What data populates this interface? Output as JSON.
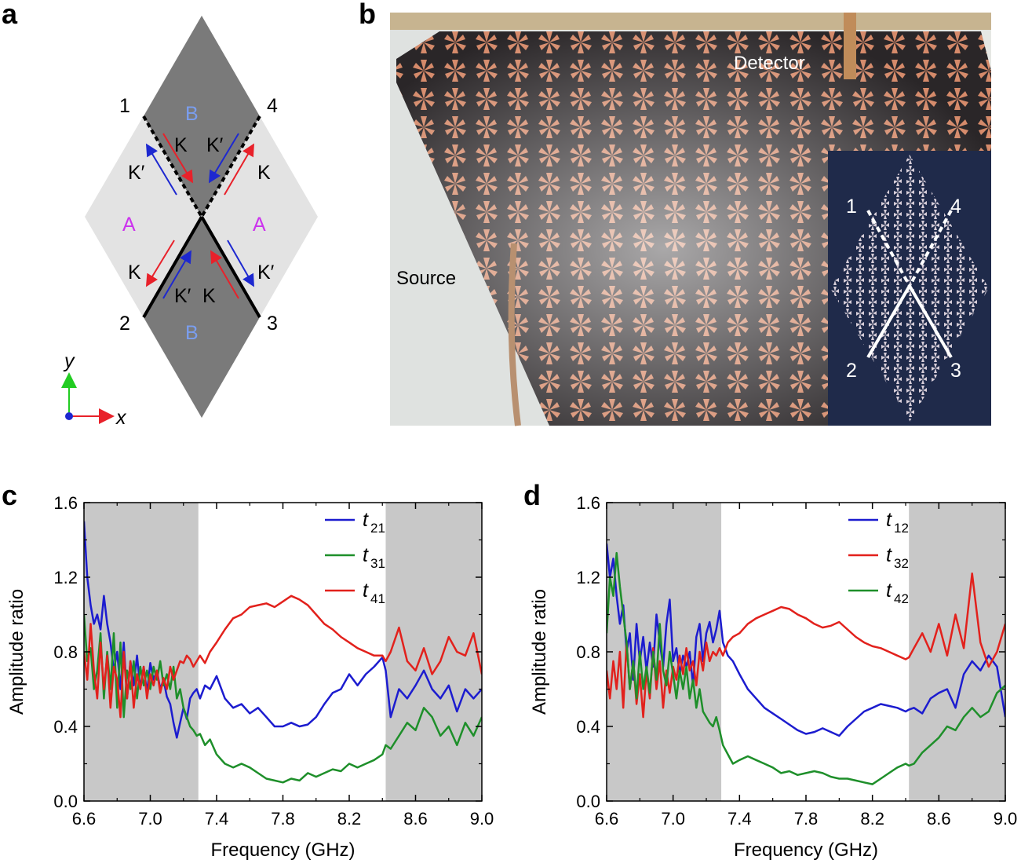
{
  "panels": {
    "a": {
      "letter": "a",
      "ports": [
        "1",
        "4",
        "2",
        "3"
      ],
      "region_B": "B",
      "region_A": "A",
      "valley_K": "K",
      "valley_Kp": "K′",
      "axis_x": "x",
      "axis_y": "y",
      "colors": {
        "dark": "#7a7a7a",
        "light": "#e3e3e3",
        "B": "#7a9eef",
        "A": "#cc33ee",
        "K": "#e8212a",
        "Kp": "#1d28d0"
      }
    },
    "b": {
      "letter": "b",
      "source_label": "Source",
      "detector_label": "Detector",
      "inset_ports": [
        "1",
        "4",
        "2",
        "3"
      ]
    },
    "c": {
      "letter": "c"
    },
    "d": {
      "letter": "d"
    }
  },
  "chart_data": [
    {
      "type": "line",
      "panel": "c",
      "xlabel": "Frequency (GHz)",
      "ylabel": "Amplitude ratio",
      "xlim": [
        6.6,
        9.0
      ],
      "ylim": [
        0.0,
        1.6
      ],
      "xticks": [
        "6.6",
        "7.0",
        "7.4",
        "7.8",
        "8.2",
        "8.6",
        "9.0"
      ],
      "yticks": [
        "0.0",
        "0.4",
        "0.8",
        "1.2",
        "1.6"
      ],
      "shaded_ranges": [
        [
          6.6,
          7.29
        ],
        [
          8.42,
          9.0
        ]
      ],
      "legend_position": "top-right",
      "series": [
        {
          "name_base": "t",
          "name_sub": "21",
          "color": "#1c1ccf",
          "x": [
            6.6,
            6.62,
            6.64,
            6.66,
            6.68,
            6.7,
            6.72,
            6.74,
            6.76,
            6.78,
            6.8,
            6.82,
            6.84,
            6.86,
            6.88,
            6.9,
            6.92,
            6.94,
            6.96,
            6.98,
            7.0,
            7.02,
            7.04,
            7.06,
            7.08,
            7.1,
            7.12,
            7.14,
            7.16,
            7.18,
            7.2,
            7.22,
            7.24,
            7.26,
            7.28,
            7.3,
            7.33,
            7.36,
            7.4,
            7.45,
            7.5,
            7.55,
            7.6,
            7.65,
            7.7,
            7.75,
            7.8,
            7.85,
            7.9,
            7.95,
            8.0,
            8.05,
            8.1,
            8.15,
            8.2,
            8.25,
            8.3,
            8.35,
            8.4,
            8.42,
            8.45,
            8.5,
            8.55,
            8.6,
            8.65,
            8.7,
            8.75,
            8.8,
            8.85,
            8.9,
            8.95,
            9.0
          ],
          "y": [
            1.5,
            1.2,
            1.05,
            0.95,
            1.0,
            0.92,
            1.1,
            0.95,
            0.85,
            0.7,
            0.8,
            0.6,
            0.85,
            0.55,
            0.75,
            0.62,
            0.78,
            0.6,
            0.72,
            0.58,
            0.74,
            0.65,
            0.7,
            0.6,
            0.65,
            0.56,
            0.52,
            0.42,
            0.34,
            0.42,
            0.5,
            0.44,
            0.55,
            0.58,
            0.6,
            0.55,
            0.62,
            0.6,
            0.67,
            0.55,
            0.5,
            0.52,
            0.47,
            0.5,
            0.45,
            0.4,
            0.4,
            0.42,
            0.4,
            0.41,
            0.45,
            0.52,
            0.58,
            0.6,
            0.68,
            0.62,
            0.68,
            0.72,
            0.77,
            0.7,
            0.45,
            0.6,
            0.55,
            0.62,
            0.7,
            0.6,
            0.55,
            0.62,
            0.48,
            0.6,
            0.55,
            0.6
          ]
        },
        {
          "name_base": "t",
          "name_sub": "31",
          "color": "#1e8f2a",
          "x": [
            6.6,
            6.62,
            6.64,
            6.66,
            6.68,
            6.7,
            6.72,
            6.74,
            6.76,
            6.78,
            6.8,
            6.82,
            6.84,
            6.86,
            6.88,
            6.9,
            6.92,
            6.94,
            6.96,
            6.98,
            7.0,
            7.02,
            7.04,
            7.06,
            7.08,
            7.1,
            7.12,
            7.14,
            7.16,
            7.18,
            7.2,
            7.22,
            7.24,
            7.26,
            7.28,
            7.3,
            7.33,
            7.36,
            7.4,
            7.45,
            7.5,
            7.55,
            7.6,
            7.65,
            7.7,
            7.75,
            7.8,
            7.85,
            7.9,
            7.95,
            8.0,
            8.05,
            8.1,
            8.15,
            8.2,
            8.25,
            8.3,
            8.35,
            8.4,
            8.42,
            8.45,
            8.5,
            8.55,
            8.6,
            8.65,
            8.7,
            8.75,
            8.8,
            8.85,
            8.9,
            8.95,
            9.0
          ],
          "y": [
            1.0,
            0.75,
            0.82,
            0.6,
            0.7,
            0.9,
            0.55,
            0.8,
            0.6,
            0.9,
            0.5,
            0.85,
            0.45,
            0.7,
            0.6,
            0.75,
            0.55,
            0.72,
            0.62,
            0.7,
            0.6,
            0.72,
            0.65,
            0.75,
            0.62,
            0.68,
            0.6,
            0.72,
            0.55,
            0.6,
            0.5,
            0.45,
            0.4,
            0.38,
            0.35,
            0.36,
            0.3,
            0.33,
            0.25,
            0.2,
            0.18,
            0.2,
            0.18,
            0.15,
            0.12,
            0.11,
            0.1,
            0.12,
            0.11,
            0.15,
            0.13,
            0.15,
            0.17,
            0.16,
            0.2,
            0.18,
            0.2,
            0.22,
            0.25,
            0.3,
            0.28,
            0.35,
            0.42,
            0.38,
            0.5,
            0.45,
            0.35,
            0.4,
            0.3,
            0.42,
            0.35,
            0.45
          ]
        },
        {
          "name_base": "t",
          "name_sub": "41",
          "color": "#e2211c",
          "x": [
            6.6,
            6.62,
            6.64,
            6.66,
            6.68,
            6.7,
            6.72,
            6.74,
            6.76,
            6.78,
            6.8,
            6.82,
            6.84,
            6.86,
            6.88,
            6.9,
            6.92,
            6.94,
            6.96,
            6.98,
            7.0,
            7.02,
            7.04,
            7.06,
            7.08,
            7.1,
            7.12,
            7.14,
            7.16,
            7.18,
            7.2,
            7.22,
            7.24,
            7.26,
            7.28,
            7.3,
            7.33,
            7.36,
            7.4,
            7.45,
            7.5,
            7.55,
            7.6,
            7.65,
            7.7,
            7.75,
            7.8,
            7.85,
            7.9,
            7.95,
            8.0,
            8.05,
            8.1,
            8.15,
            8.2,
            8.25,
            8.3,
            8.35,
            8.4,
            8.42,
            8.45,
            8.5,
            8.55,
            8.6,
            8.65,
            8.7,
            8.75,
            8.8,
            8.85,
            8.9,
            8.95,
            9.0
          ],
          "y": [
            0.8,
            0.65,
            0.95,
            0.7,
            0.55,
            0.85,
            0.6,
            0.78,
            0.5,
            0.72,
            0.65,
            0.45,
            0.8,
            0.55,
            0.75,
            0.5,
            0.68,
            0.6,
            0.72,
            0.55,
            0.68,
            0.62,
            0.7,
            0.58,
            0.66,
            0.6,
            0.72,
            0.65,
            0.7,
            0.75,
            0.74,
            0.78,
            0.76,
            0.72,
            0.75,
            0.78,
            0.74,
            0.8,
            0.85,
            0.92,
            0.98,
            1.0,
            1.04,
            1.05,
            1.06,
            1.04,
            1.07,
            1.1,
            1.08,
            1.05,
            1.0,
            0.95,
            0.92,
            0.88,
            0.85,
            0.82,
            0.8,
            0.78,
            0.78,
            0.75,
            0.8,
            0.93,
            0.75,
            0.7,
            0.82,
            0.68,
            0.75,
            0.88,
            0.8,
            0.78,
            0.9,
            0.68
          ]
        }
      ]
    },
    {
      "type": "line",
      "panel": "d",
      "xlabel": "Frequency (GHz)",
      "ylabel": "Amplitude ratio",
      "xlim": [
        6.6,
        9.0
      ],
      "ylim": [
        0.0,
        1.6
      ],
      "xticks": [
        "6.6",
        "7.0",
        "7.4",
        "7.8",
        "8.2",
        "8.6",
        "9.0"
      ],
      "yticks": [
        "0.0",
        "0.4",
        "0.8",
        "1.2",
        "1.6"
      ],
      "shaded_ranges": [
        [
          6.6,
          7.29
        ],
        [
          8.42,
          9.0
        ]
      ],
      "legend_position": "top-right",
      "series": [
        {
          "name_base": "t",
          "name_sub": "12",
          "color": "#1c1ccf",
          "x": [
            6.6,
            6.62,
            6.64,
            6.66,
            6.68,
            6.7,
            6.72,
            6.74,
            6.76,
            6.78,
            6.8,
            6.82,
            6.84,
            6.86,
            6.88,
            6.9,
            6.92,
            6.94,
            6.96,
            6.98,
            7.0,
            7.02,
            7.04,
            7.06,
            7.08,
            7.1,
            7.12,
            7.14,
            7.16,
            7.18,
            7.2,
            7.22,
            7.24,
            7.26,
            7.28,
            7.3,
            7.33,
            7.36,
            7.4,
            7.45,
            7.5,
            7.55,
            7.6,
            7.65,
            7.7,
            7.75,
            7.8,
            7.85,
            7.9,
            7.95,
            8.0,
            8.05,
            8.1,
            8.15,
            8.2,
            8.25,
            8.3,
            8.35,
            8.4,
            8.42,
            8.45,
            8.5,
            8.55,
            8.6,
            8.65,
            8.7,
            8.75,
            8.8,
            8.85,
            8.9,
            8.95,
            9.0
          ],
          "y": [
            1.38,
            1.2,
            1.3,
            1.1,
            0.95,
            1.05,
            0.8,
            0.9,
            0.65,
            0.95,
            0.75,
            0.88,
            0.7,
            0.85,
            0.72,
            1.0,
            0.85,
            0.72,
            0.95,
            1.08,
            0.75,
            0.82,
            0.68,
            0.78,
            0.72,
            0.8,
            0.62,
            0.88,
            0.95,
            0.75,
            0.9,
            0.96,
            0.85,
            0.92,
            1.02,
            0.85,
            0.78,
            0.75,
            0.68,
            0.6,
            0.55,
            0.5,
            0.47,
            0.44,
            0.41,
            0.38,
            0.36,
            0.37,
            0.39,
            0.37,
            0.35,
            0.4,
            0.44,
            0.48,
            0.5,
            0.52,
            0.51,
            0.5,
            0.48,
            0.49,
            0.5,
            0.47,
            0.55,
            0.58,
            0.6,
            0.5,
            0.68,
            0.75,
            0.7,
            0.78,
            0.72,
            0.45
          ]
        },
        {
          "name_base": "t",
          "name_sub": "32",
          "color": "#e2211c",
          "x": [
            6.6,
            6.62,
            6.64,
            6.66,
            6.68,
            6.7,
            6.72,
            6.74,
            6.76,
            6.78,
            6.8,
            6.82,
            6.84,
            6.86,
            6.88,
            6.9,
            6.92,
            6.94,
            6.96,
            6.98,
            7.0,
            7.02,
            7.04,
            7.06,
            7.08,
            7.1,
            7.12,
            7.14,
            7.16,
            7.18,
            7.2,
            7.22,
            7.24,
            7.26,
            7.28,
            7.3,
            7.33,
            7.36,
            7.4,
            7.45,
            7.5,
            7.55,
            7.6,
            7.65,
            7.7,
            7.75,
            7.8,
            7.85,
            7.9,
            7.95,
            8.0,
            8.05,
            8.1,
            8.15,
            8.2,
            8.25,
            8.3,
            8.35,
            8.4,
            8.42,
            8.45,
            8.5,
            8.55,
            8.6,
            8.65,
            8.7,
            8.75,
            8.8,
            8.85,
            8.9,
            8.95,
            9.0
          ],
          "y": [
            0.7,
            0.55,
            0.75,
            0.6,
            0.8,
            0.5,
            0.85,
            0.6,
            0.75,
            0.52,
            0.68,
            0.45,
            0.7,
            0.55,
            0.82,
            0.6,
            0.75,
            0.5,
            0.7,
            0.58,
            0.72,
            0.65,
            0.78,
            0.68,
            0.82,
            0.7,
            0.75,
            0.62,
            0.8,
            0.7,
            0.85,
            0.75,
            0.8,
            0.78,
            0.82,
            0.78,
            0.85,
            0.88,
            0.9,
            0.95,
            0.98,
            1.0,
            1.02,
            1.04,
            1.03,
            1.0,
            0.98,
            0.95,
            0.93,
            0.94,
            0.96,
            0.92,
            0.88,
            0.85,
            0.83,
            0.82,
            0.8,
            0.78,
            0.76,
            0.77,
            0.82,
            0.9,
            0.8,
            0.95,
            0.78,
            1.0,
            0.82,
            1.22,
            0.85,
            0.72,
            0.8,
            0.95
          ]
        },
        {
          "name_base": "t",
          "name_sub": "42",
          "color": "#1e8f2a",
          "x": [
            6.6,
            6.62,
            6.64,
            6.66,
            6.68,
            6.7,
            6.72,
            6.74,
            6.76,
            6.78,
            6.8,
            6.82,
            6.84,
            6.86,
            6.88,
            6.9,
            6.92,
            6.94,
            6.96,
            6.98,
            7.0,
            7.02,
            7.04,
            7.06,
            7.08,
            7.1,
            7.12,
            7.14,
            7.16,
            7.18,
            7.2,
            7.22,
            7.24,
            7.26,
            7.28,
            7.3,
            7.33,
            7.36,
            7.4,
            7.45,
            7.5,
            7.55,
            7.6,
            7.65,
            7.7,
            7.75,
            7.8,
            7.85,
            7.9,
            7.95,
            8.0,
            8.05,
            8.1,
            8.15,
            8.2,
            8.25,
            8.3,
            8.35,
            8.4,
            8.42,
            8.45,
            8.5,
            8.55,
            8.6,
            8.65,
            8.7,
            8.75,
            8.8,
            8.85,
            8.9,
            8.95,
            9.0
          ],
          "y": [
            0.9,
            1.2,
            1.1,
            1.33,
            1.15,
            1.0,
            0.85,
            0.6,
            0.75,
            0.55,
            0.8,
            0.6,
            0.72,
            0.58,
            0.8,
            0.65,
            0.95,
            0.7,
            0.62,
            0.8,
            0.68,
            0.55,
            0.7,
            0.6,
            0.72,
            0.55,
            0.65,
            0.5,
            0.6,
            0.48,
            0.45,
            0.42,
            0.4,
            0.45,
            0.38,
            0.3,
            0.25,
            0.2,
            0.22,
            0.24,
            0.22,
            0.2,
            0.18,
            0.15,
            0.16,
            0.14,
            0.15,
            0.16,
            0.15,
            0.13,
            0.12,
            0.12,
            0.11,
            0.1,
            0.09,
            0.12,
            0.15,
            0.18,
            0.2,
            0.19,
            0.2,
            0.26,
            0.3,
            0.34,
            0.4,
            0.38,
            0.45,
            0.5,
            0.45,
            0.48,
            0.58,
            0.62
          ]
        }
      ]
    }
  ]
}
